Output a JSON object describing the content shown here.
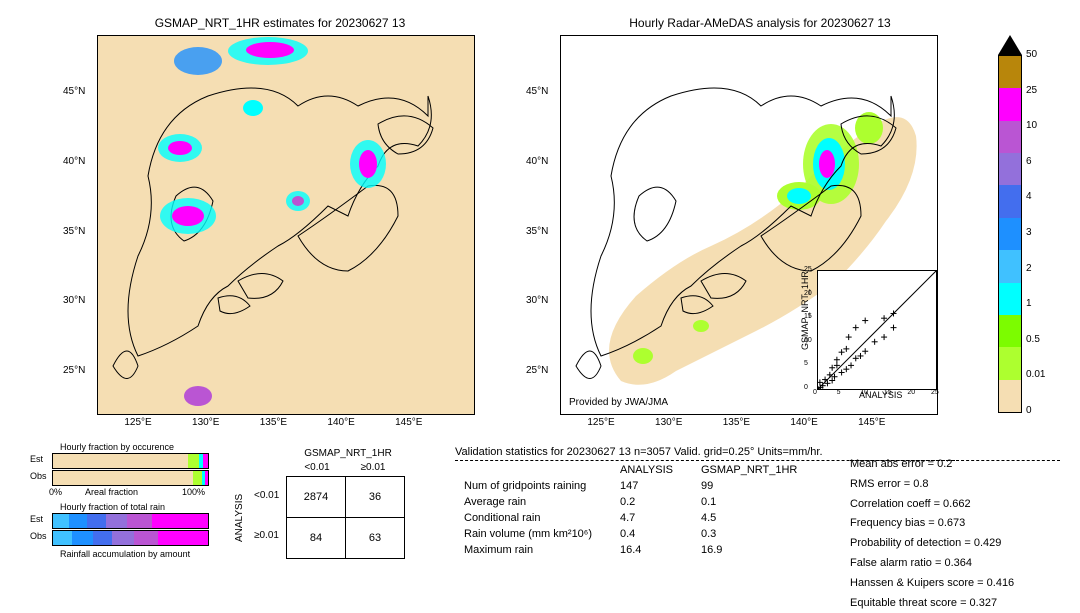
{
  "titles": {
    "left": "GSMAP_NRT_1HR estimates for 20230627 13",
    "right": "Hourly Radar-AMeDAS analysis for 20230627 13"
  },
  "map": {
    "x_ticks": [
      "125°E",
      "130°E",
      "135°E",
      "140°E",
      "145°E"
    ],
    "y_ticks": [
      "25°N",
      "30°N",
      "35°N",
      "40°N",
      "45°N"
    ],
    "bg_color": "#f5deb3",
    "coast_color": "#000000",
    "provided_by": "Provided by JWA/JMA"
  },
  "colorbar": {
    "levels": [
      "0",
      "0.01",
      "0.5",
      "1",
      "2",
      "3",
      "4",
      "6",
      "10",
      "25",
      "50"
    ],
    "colors": [
      "#f5deb3",
      "#adff2f",
      "#7cfc00",
      "#00ffff",
      "#40c1ff",
      "#1e90ff",
      "#436eee",
      "#9370db",
      "#ba55d3",
      "#ff00ff",
      "#b8860b"
    ],
    "arrow_color": "#000000"
  },
  "hourly_fraction": {
    "occurrence_title": "Hourly fraction by occurence",
    "total_rain_title": "Hourly fraction of total rain",
    "accum_title": "Rainfall accumulation by amount",
    "rows": [
      "Est",
      "Obs"
    ],
    "x_left": "0%",
    "x_right": "100%",
    "x_label": "Areal fraction",
    "occ_est_segs": [
      [
        "#f5deb3",
        87
      ],
      [
        "#adff2f",
        7
      ],
      [
        "#00ffff",
        3
      ],
      [
        "#ff00ff",
        3
      ]
    ],
    "occ_obs_segs": [
      [
        "#f5deb3",
        90
      ],
      [
        "#adff2f",
        6
      ],
      [
        "#00ffff",
        2
      ],
      [
        "#ff00ff",
        2
      ]
    ],
    "tot_est_segs": [
      [
        "#40c1ff",
        10
      ],
      [
        "#1e90ff",
        12
      ],
      [
        "#436eee",
        12
      ],
      [
        "#9370db",
        14
      ],
      [
        "#ba55d3",
        16
      ],
      [
        "#ff00ff",
        36
      ]
    ],
    "tot_obs_segs": [
      [
        "#40c1ff",
        12
      ],
      [
        "#1e90ff",
        14
      ],
      [
        "#436eee",
        12
      ],
      [
        "#9370db",
        14
      ],
      [
        "#ba55d3",
        16
      ],
      [
        "#ff00ff",
        32
      ]
    ]
  },
  "contingency": {
    "col_title": "GSMAP_NRT_1HR",
    "row_title": "ANALYSIS",
    "col_headers": [
      "<0.01",
      "≥0.01"
    ],
    "row_headers": [
      "<0.01",
      "≥0.01"
    ],
    "cells": [
      [
        "2874",
        "36"
      ],
      [
        "84",
        "63"
      ]
    ]
  },
  "validation_header": "Validation statistics for 20230627 13  n=3057 Valid. grid=0.25° Units=mm/hr.",
  "stats_table": {
    "col_headers": [
      "ANALYSIS",
      "GSMAP_NRT_1HR"
    ],
    "rows": [
      [
        "Num of gridpoints raining",
        "147",
        "99"
      ],
      [
        "Average rain",
        "0.2",
        "0.1"
      ],
      [
        "Conditional rain",
        "4.7",
        "4.5"
      ],
      [
        "Rain volume (mm km²10⁶)",
        "0.4",
        "0.3"
      ],
      [
        "Maximum rain",
        "16.4",
        "16.9"
      ]
    ]
  },
  "stats_right": [
    "Mean abs error =   0.2",
    "RMS error =   0.8",
    "Correlation coeff =  0.662",
    "Frequency bias =  0.673",
    "Probability of detection =  0.429",
    "False alarm ratio =  0.364",
    "Hanssen & Kuipers score =  0.416",
    "Equitable threat score =  0.327"
  ],
  "scatter": {
    "xlabel": "ANALYSIS",
    "ylabel": "GSMAP_NRT_1HR",
    "xlim": [
      0,
      25
    ],
    "ylim": [
      0,
      25
    ],
    "ticks": [
      0,
      5,
      10,
      15,
      20,
      25
    ],
    "marker": "+",
    "marker_color": "#000000",
    "points": [
      [
        0,
        0
      ],
      [
        0.5,
        0.3
      ],
      [
        0.4,
        1.4
      ],
      [
        1,
        0.7
      ],
      [
        1.5,
        2
      ],
      [
        2,
        1.2
      ],
      [
        2.5,
        3
      ],
      [
        3,
        1.8
      ],
      [
        3,
        4.5
      ],
      [
        3.5,
        2.6
      ],
      [
        4,
        5
      ],
      [
        4,
        6.2
      ],
      [
        5,
        3.5
      ],
      [
        5,
        7.8
      ],
      [
        6,
        4.2
      ],
      [
        6,
        8.5
      ],
      [
        6.5,
        11
      ],
      [
        7,
        5
      ],
      [
        8,
        6.5
      ],
      [
        8,
        13
      ],
      [
        9,
        7
      ],
      [
        10,
        8
      ],
      [
        10,
        14.5
      ],
      [
        12,
        10
      ],
      [
        14,
        11
      ],
      [
        14,
        15
      ],
      [
        16,
        16
      ],
      [
        16,
        13
      ]
    ]
  }
}
